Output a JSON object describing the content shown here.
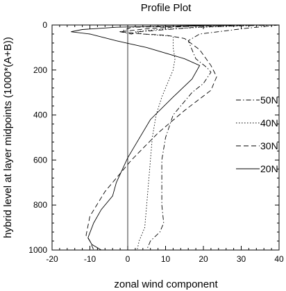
{
  "chart_data": {
    "type": "line",
    "title": "Profile Plot",
    "xlabel": "zonal wind component",
    "ylabel": "hybrid level at layer midpoints (1000*(A+B))",
    "xlim": [
      -20,
      40
    ],
    "ylim": [
      1000,
      0
    ],
    "y_inverted": true,
    "grid": false,
    "legend_position": "right",
    "x_ticks": [
      "-20",
      "-10",
      "0",
      "10",
      "20",
      "30",
      "40"
    ],
    "y_ticks": [
      "0",
      "200",
      "400",
      "600",
      "800",
      "1000"
    ],
    "reference_line_x": 0,
    "series": [
      {
        "name": "50N",
        "style": "dash-dot",
        "points": [
          [
            38,
            0
          ],
          [
            16,
            5
          ],
          [
            1,
            10
          ],
          [
            -2,
            30
          ],
          [
            1,
            40
          ],
          [
            3,
            30
          ],
          [
            18,
            10
          ],
          [
            27,
            5
          ],
          [
            40,
            0
          ],
          [
            31,
            15
          ],
          [
            19,
            40
          ],
          [
            16,
            70
          ],
          [
            18,
            150
          ],
          [
            21,
            190
          ],
          [
            22,
            210
          ],
          [
            20,
            260
          ],
          [
            17,
            300
          ],
          [
            12,
            400
          ],
          [
            10,
            500
          ],
          [
            9,
            600
          ],
          [
            9,
            700
          ],
          [
            9,
            800
          ],
          [
            9.5,
            880
          ],
          [
            8.5,
            920
          ],
          [
            6,
            960
          ],
          [
            5,
            1000
          ]
        ]
      },
      {
        "name": "40N",
        "style": "dotted",
        "points": [
          [
            35,
            0
          ],
          [
            20,
            10
          ],
          [
            8,
            20
          ],
          [
            2,
            30
          ],
          [
            4,
            40
          ],
          [
            12,
            50
          ],
          [
            12,
            100
          ],
          [
            12.5,
            150
          ],
          [
            12,
            200
          ],
          [
            10.5,
            260
          ],
          [
            9,
            320
          ],
          [
            7.5,
            400
          ],
          [
            6.5,
            500
          ],
          [
            6,
            600
          ],
          [
            5.5,
            700
          ],
          [
            5,
            800
          ],
          [
            4.5,
            900
          ],
          [
            3,
            960
          ],
          [
            2.5,
            1000
          ]
        ]
      },
      {
        "name": "30N",
        "style": "dashed",
        "points": [
          [
            30,
            0
          ],
          [
            17,
            5
          ],
          [
            6,
            15
          ],
          [
            -2,
            30
          ],
          [
            4,
            40
          ],
          [
            10,
            45
          ],
          [
            15,
            60
          ],
          [
            19,
            110
          ],
          [
            22,
            180
          ],
          [
            23.5,
            230
          ],
          [
            22,
            290
          ],
          [
            15,
            380
          ],
          [
            8,
            480
          ],
          [
            1,
            600
          ],
          [
            -6,
            740
          ],
          [
            -10,
            850
          ],
          [
            -11,
            935
          ],
          [
            -10,
            960
          ],
          [
            -9,
            1000
          ]
        ]
      },
      {
        "name": "20N",
        "style": "solid",
        "points": [
          [
            30,
            0
          ],
          [
            10,
            5
          ],
          [
            -3,
            10
          ],
          [
            -12,
            20
          ],
          [
            -15,
            30
          ],
          [
            -10,
            40
          ],
          [
            -3,
            70
          ],
          [
            5,
            100
          ],
          [
            15,
            150
          ],
          [
            19,
            180
          ],
          [
            17,
            240
          ],
          [
            12,
            320
          ],
          [
            6,
            420
          ],
          [
            0,
            590
          ],
          [
            -3,
            700
          ],
          [
            -4,
            760
          ],
          [
            -7,
            820
          ],
          [
            -9,
            880
          ],
          [
            -10.5,
            945
          ],
          [
            -9.5,
            975
          ],
          [
            -7,
            1000
          ]
        ]
      }
    ]
  }
}
